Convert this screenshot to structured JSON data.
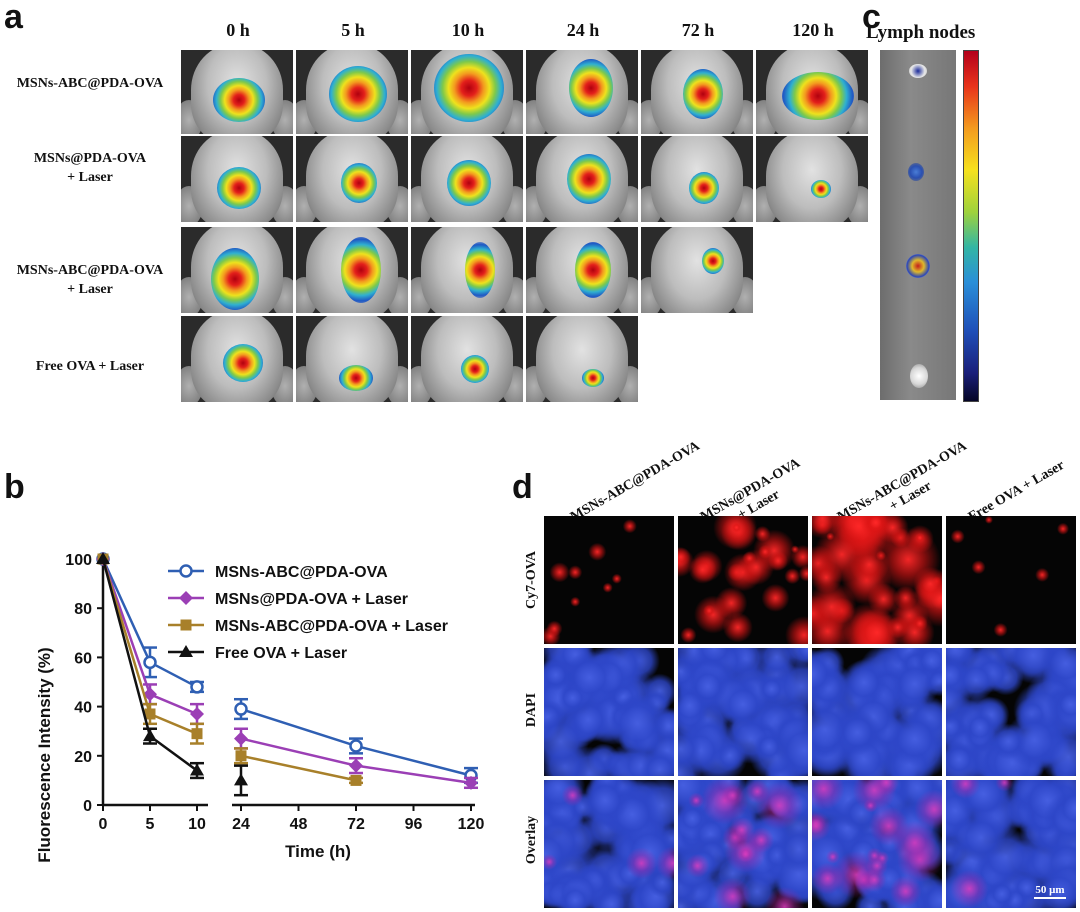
{
  "panel_a": {
    "letter": "a",
    "time_labels": [
      "0 h",
      "5 h",
      "10 h",
      "24 h",
      "72 h",
      "120 h"
    ],
    "rows": [
      {
        "label_line1": "MSNs-ABC@PDA-OVA",
        "label_line2": "",
        "tiles": 6
      },
      {
        "label_line1": "MSNs@PDA-OVA",
        "label_line2": "+ Laser",
        "tiles": 6
      },
      {
        "label_line1": "MSNs-ABC@PDA-OVA",
        "label_line2": "+ Laser",
        "tiles": 5
      },
      {
        "label_line1": "Free OVA + Laser",
        "label_line2": "",
        "tiles": 4
      }
    ]
  },
  "panel_c": {
    "letter": "c",
    "title": "Lymph nodes"
  },
  "panel_b": {
    "letter": "b"
  },
  "chart_data": {
    "type": "line",
    "xlabel": "Time (h)",
    "ylabel": "Fluorescence Intensity (%)",
    "x_ticks": [
      0,
      5,
      10,
      24,
      48,
      72,
      96,
      120
    ],
    "y_ticks": [
      0,
      20,
      40,
      60,
      80,
      100
    ],
    "ylim": [
      0,
      100
    ],
    "legend_position": "top-right",
    "series": [
      {
        "name": "MSNs-ABC@PDA-OVA",
        "color": "#2f5fb3",
        "marker": "circle",
        "x": [
          0,
          5,
          10,
          24,
          72,
          120
        ],
        "y": [
          100,
          58,
          48,
          39,
          24,
          12
        ],
        "err": [
          0,
          6,
          2,
          4,
          3,
          3
        ]
      },
      {
        "name": "MSNs@PDA-OVA + Laser",
        "color": "#9b3fb5",
        "marker": "diamond",
        "x": [
          0,
          5,
          10,
          24,
          72,
          120
        ],
        "y": [
          100,
          45,
          37,
          27,
          16,
          9
        ],
        "err": [
          0,
          4,
          4,
          4,
          3,
          2
        ]
      },
      {
        "name": "MSNs-ABC@PDA-OVA + Laser",
        "color": "#a8802a",
        "marker": "square",
        "x": [
          0,
          5,
          10,
          24,
          72
        ],
        "y": [
          100,
          37,
          29,
          20,
          10
        ],
        "err": [
          0,
          4,
          4,
          3,
          1
        ]
      },
      {
        "name": "Free OVA + Laser",
        "color": "#111111",
        "marker": "triangle",
        "x": [
          0,
          5,
          10,
          24
        ],
        "y": [
          100,
          28,
          14,
          10
        ],
        "err": [
          0,
          3,
          3,
          6
        ]
      }
    ]
  },
  "panel_d": {
    "letter": "d",
    "column_labels": [
      {
        "line1": "MSNs-ABC@PDA-OVA",
        "line2": ""
      },
      {
        "line1": "MSNs@PDA-OVA",
        "line2": "+ Laser"
      },
      {
        "line1": "MSNs-ABC@PDA-OVA",
        "line2": "+ Laser"
      },
      {
        "line1": "Free OVA + Laser",
        "line2": ""
      }
    ],
    "row_labels": [
      "Cy7-OVA",
      "DAPI",
      "Overlay"
    ],
    "scale_bar": "50 μm"
  }
}
